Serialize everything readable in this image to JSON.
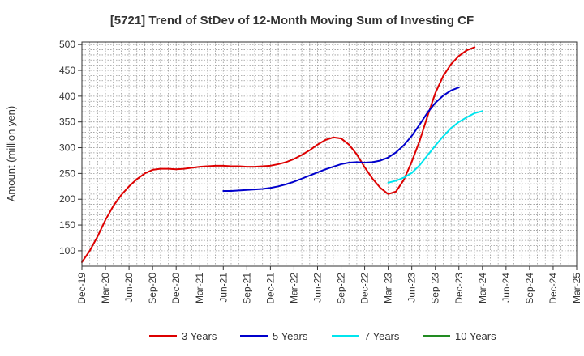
{
  "chart_data": {
    "type": "line",
    "title": "[5721]  Trend of StDev of 12-Month Moving Sum of Investing CF",
    "xlabel": "",
    "ylabel": "Amount (million yen)",
    "ylim": [
      70,
      505
    ],
    "yticks": [
      100,
      150,
      200,
      250,
      300,
      350,
      400,
      450,
      500
    ],
    "grid": true,
    "legend_position": "bottom",
    "x_tick_labels": [
      "Dec-19",
      "Mar-20",
      "Jun-20",
      "Sep-20",
      "Dec-20",
      "Mar-21",
      "Jun-21",
      "Sep-21",
      "Dec-21",
      "Mar-22",
      "Jun-22",
      "Sep-22",
      "Dec-22",
      "Mar-23",
      "Jun-23",
      "Sep-23",
      "Dec-23",
      "Mar-24",
      "Jun-24",
      "Sep-24",
      "Dec-24",
      "Mar-25"
    ],
    "series": [
      {
        "name": "3 Years",
        "color": "#dd0000",
        "start_index": 0,
        "values": [
          78,
          100,
          128,
          160,
          187,
          208,
          225,
          239,
          250,
          257,
          259,
          259,
          258,
          259,
          261,
          263,
          264,
          265,
          265,
          264,
          264,
          263,
          263,
          264,
          265,
          268,
          272,
          278,
          286,
          295,
          306,
          315,
          320,
          318,
          306,
          287,
          262,
          240,
          222,
          210,
          215,
          238,
          273,
          313,
          361,
          406,
          439,
          462,
          478,
          489,
          495
        ]
      },
      {
        "name": "5 Years",
        "color": "#0000cc",
        "start_index": 18,
        "values": [
          216,
          216,
          217,
          218,
          219,
          220,
          222,
          225,
          229,
          234,
          240,
          246,
          252,
          258,
          263,
          268,
          271,
          272,
          271,
          272,
          275,
          281,
          291,
          305,
          323,
          345,
          368,
          387,
          401,
          411,
          417
        ]
      },
      {
        "name": "7 Years",
        "color": "#00e5ee",
        "start_index": 39,
        "values": [
          232,
          236,
          242,
          251,
          266,
          285,
          304,
          322,
          338,
          350,
          359,
          367,
          371
        ]
      },
      {
        "name": "10 Years",
        "color": "#228b22",
        "start_index": 0,
        "values": []
      }
    ]
  }
}
